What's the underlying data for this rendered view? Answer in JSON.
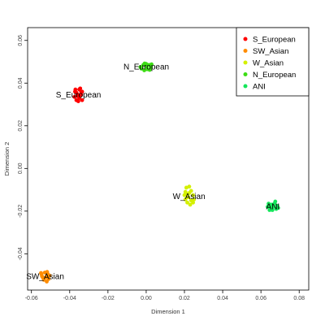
{
  "chart_data": {
    "type": "scatter",
    "xlabel": "Dimension 1",
    "ylabel": "Dimension 2",
    "xlim": [
      -0.062,
      0.085
    ],
    "ylim": [
      -0.057,
      0.066
    ],
    "x_ticks": [
      "-0.06",
      "-0.04",
      "-0.02",
      "0.00",
      "0.02",
      "0.04",
      "0.06",
      "0.08"
    ],
    "x_tick_values": [
      -0.06,
      -0.04,
      -0.02,
      0.0,
      0.02,
      0.04,
      0.06,
      0.08
    ],
    "y_ticks": [
      "-0.04",
      "-0.02",
      "0.00",
      "0.02",
      "0.04",
      "0.06"
    ],
    "y_tick_values": [
      -0.04,
      -0.02,
      0.0,
      0.02,
      0.04,
      0.06
    ],
    "grid": false,
    "legend_position": "top-right",
    "legend": [
      {
        "name": "S_European",
        "color": "#ff0000"
      },
      {
        "name": "SW_Asian",
        "color": "#ff8c00"
      },
      {
        "name": "W_Asian",
        "color": "#d4f000"
      },
      {
        "name": "N_European",
        "color": "#3cdc14"
      },
      {
        "name": "ANI",
        "color": "#14e65a"
      }
    ],
    "series": [
      {
        "name": "S_European",
        "color": "#ff0000",
        "label": "S_European",
        "points": [
          [
            -0.037,
            0.037
          ],
          [
            -0.035,
            0.037
          ],
          [
            -0.0335,
            0.036
          ],
          [
            -0.0365,
            0.0355
          ],
          [
            -0.034,
            0.0345
          ],
          [
            -0.036,
            0.034
          ],
          [
            -0.0375,
            0.0335
          ],
          [
            -0.035,
            0.033
          ],
          [
            -0.0335,
            0.032
          ],
          [
            -0.0355,
            0.0315
          ],
          [
            -0.0365,
            0.032
          ],
          [
            -0.034,
            0.036
          ],
          [
            -0.0345,
            0.0375
          ],
          [
            -0.0372,
            0.036
          ],
          [
            -0.0355,
            0.0345
          ]
        ]
      },
      {
        "name": "SW_Asian",
        "color": "#ff8c00",
        "label": "SW_Asian",
        "points": [
          [
            -0.055,
            -0.049
          ],
          [
            -0.053,
            -0.0488
          ],
          [
            -0.0515,
            -0.0495
          ],
          [
            -0.0545,
            -0.0505
          ],
          [
            -0.0525,
            -0.051
          ],
          [
            -0.051,
            -0.0518
          ],
          [
            -0.0535,
            -0.0522
          ],
          [
            -0.052,
            -0.053
          ],
          [
            -0.0505,
            -0.0502
          ],
          [
            -0.054,
            -0.0512
          ],
          [
            -0.0518,
            -0.0485
          ],
          [
            -0.0548,
            -0.0495
          ]
        ]
      },
      {
        "name": "W_Asian",
        "color": "#d4f000",
        "label": "W_Asian",
        "points": [
          [
            0.021,
            -0.009
          ],
          [
            0.0225,
            -0.0085
          ],
          [
            0.0205,
            -0.011
          ],
          [
            0.0235,
            -0.0105
          ],
          [
            0.0215,
            -0.012
          ],
          [
            0.0245,
            -0.0125
          ],
          [
            0.022,
            -0.0135
          ],
          [
            0.0205,
            -0.0145
          ],
          [
            0.0235,
            -0.015
          ],
          [
            0.025,
            -0.0145
          ],
          [
            0.0215,
            -0.016
          ],
          [
            0.023,
            -0.017
          ],
          [
            0.0245,
            -0.016
          ],
          [
            0.0225,
            -0.0115
          ],
          [
            0.02,
            -0.0125
          ]
        ]
      },
      {
        "name": "N_European",
        "color": "#3cdc14",
        "label": "N_European",
        "points": [
          [
            -0.003,
            0.0475
          ],
          [
            -0.0015,
            0.0485
          ],
          [
            0.0,
            0.049
          ],
          [
            0.0015,
            0.0485
          ],
          [
            0.0025,
            0.0475
          ],
          [
            0.0005,
            0.0465
          ],
          [
            -0.001,
            0.046
          ],
          [
            -0.0025,
            0.0468
          ],
          [
            0.0018,
            0.0462
          ],
          [
            0.0002,
            0.0478
          ],
          [
            -0.0008,
            0.0492
          ],
          [
            0.0028,
            0.0488
          ]
        ]
      },
      {
        "name": "ANI",
        "color": "#14e65a",
        "label": "ANI",
        "points": [
          [
            0.064,
            -0.0165
          ],
          [
            0.0655,
            -0.017
          ],
          [
            0.067,
            -0.0165
          ],
          [
            0.0685,
            -0.0175
          ],
          [
            0.0665,
            -0.018
          ],
          [
            0.065,
            -0.0185
          ],
          [
            0.068,
            -0.019
          ],
          [
            0.0635,
            -0.018
          ],
          [
            0.066,
            -0.0195
          ],
          [
            0.0675,
            -0.0155
          ],
          [
            0.0645,
            -0.0195
          ],
          [
            0.069,
            -0.0185
          ]
        ]
      }
    ]
  }
}
